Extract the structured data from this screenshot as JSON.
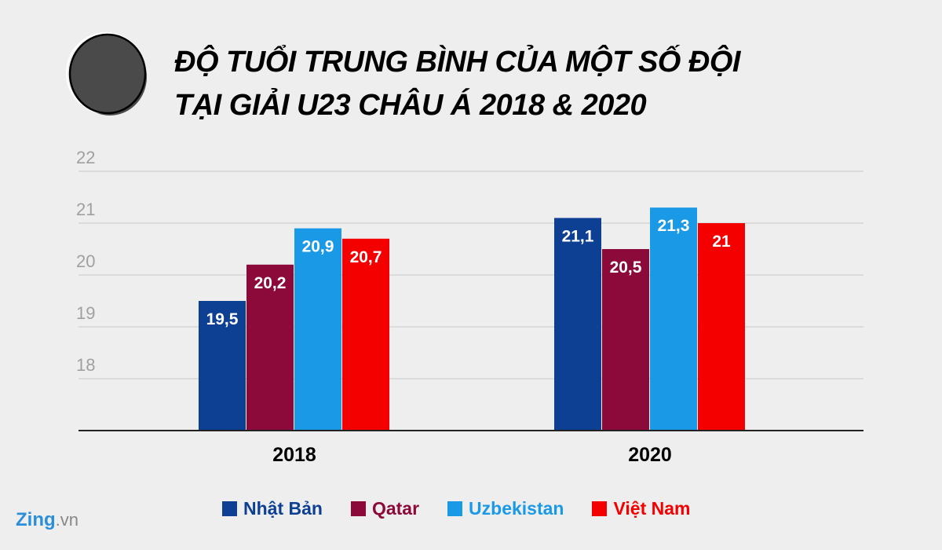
{
  "title_lines": [
    "ĐỘ TUỔI TRUNG BÌNH CỦA MỘT SỐ ĐỘI",
    "TẠI GIẢI U23 CHÂU Á 2018 & 2020"
  ],
  "brand": {
    "name": "Zing",
    "suffix": ".vn"
  },
  "chart_data": {
    "type": "bar",
    "title": "ĐỘ TUỔI TRUNG BÌNH CỦA MỘT SỐ ĐỘI TẠI GIẢI U23 CHÂU Á 2018 & 2020",
    "categories": [
      "2018",
      "2020"
    ],
    "ylim": [
      17,
      22
    ],
    "yticks": [
      "18",
      "19",
      "20",
      "21",
      "22"
    ],
    "grid": true,
    "legend_position": "bottom",
    "series": [
      {
        "name": "Nhật Bản",
        "color": "#0d3f93",
        "values": [
          19.5,
          21.1
        ],
        "labels": [
          "19,5",
          "21,1"
        ]
      },
      {
        "name": "Qatar",
        "color": "#8c0a3a",
        "values": [
          20.2,
          20.5
        ],
        "labels": [
          "20,2",
          "20,5"
        ]
      },
      {
        "name": "Uzbekistan",
        "color": "#1a9ae6",
        "values": [
          20.9,
          21.3
        ],
        "labels": [
          "20,9",
          "21,3"
        ]
      },
      {
        "name": "Việt Nam",
        "color": "#f50000",
        "values": [
          20.7,
          21
        ],
        "labels": [
          "20,7",
          "21"
        ]
      }
    ]
  }
}
